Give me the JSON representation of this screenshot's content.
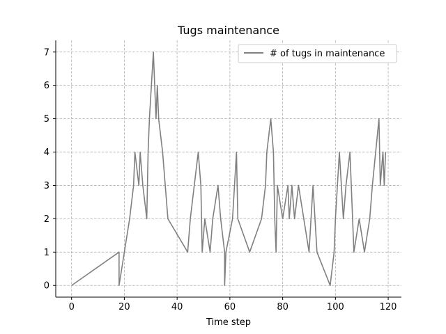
{
  "chart_data": {
    "type": "line",
    "title": "Tugs maintenance",
    "xlabel": "Time step",
    "ylabel": "",
    "xlim": [
      -6,
      125
    ],
    "ylim": [
      -0.35,
      7.35
    ],
    "xticks": [
      0,
      20,
      40,
      60,
      80,
      100,
      120
    ],
    "yticks": [
      0,
      1,
      2,
      3,
      4,
      5,
      6,
      7
    ],
    "grid": true,
    "grid_style": "dashed",
    "legend_position": "top-right",
    "series": [
      {
        "name": "# of tugs in maintenance",
        "color": "#808080",
        "x": [
          0,
          18,
          18,
          20,
          22,
          23.5,
          24,
          25.5,
          26,
          27,
          28.5,
          29,
          29.5,
          31,
          32,
          32.5,
          33,
          34.5,
          35.5,
          36.5,
          44,
          45,
          46.5,
          48,
          49,
          49.5,
          50.5,
          52.5,
          53.5,
          55.5,
          56.5,
          58,
          58,
          58.5,
          61,
          62.5,
          63,
          67.5,
          72,
          73.5,
          74,
          75.5,
          76.5,
          77,
          77.5,
          78,
          80,
          82,
          82.5,
          83.5,
          84.5,
          86,
          88,
          90,
          91.5,
          93,
          98,
          99.5,
          100,
          101.5,
          103,
          104,
          105.5,
          107,
          109,
          111,
          113,
          114,
          116.5,
          117,
          118,
          118.5,
          119
        ],
        "y": [
          0,
          1,
          0,
          1,
          2,
          3,
          4,
          3,
          4,
          3,
          2,
          4,
          5,
          7,
          5,
          6,
          5,
          4,
          3,
          2,
          1,
          2,
          3,
          4,
          3,
          1,
          2,
          1,
          2,
          3,
          2,
          1,
          0,
          1,
          2,
          4,
          2,
          1,
          2,
          3,
          4,
          5,
          4,
          2,
          1,
          3,
          2,
          3,
          2,
          3,
          2,
          3,
          2,
          1,
          3,
          1,
          0,
          1,
          2,
          4,
          2,
          3,
          4,
          1,
          2,
          1,
          2,
          3,
          5,
          3,
          4,
          3,
          4
        ]
      }
    ]
  }
}
